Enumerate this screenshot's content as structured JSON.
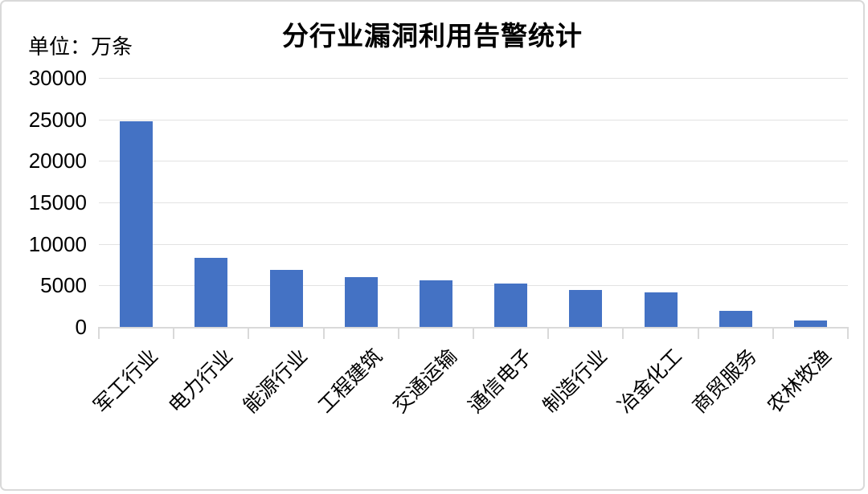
{
  "title": "分行业漏洞利用告警统计",
  "unit_label": "单位：万条",
  "chart_data": {
    "type": "bar",
    "title": "分行业漏洞利用告警统计",
    "unit": "万条",
    "categories": [
      "军工行业",
      "电力行业",
      "能源行业",
      "工程建筑",
      "交通运输",
      "通信电子",
      "制造行业",
      "冶金化工",
      "商贸服务",
      "农林牧渔"
    ],
    "values": [
      24800,
      8300,
      6900,
      6000,
      5650,
      5200,
      4500,
      4200,
      1900,
      800
    ],
    "xlabel": "",
    "ylabel": "万条",
    "ylim": [
      0,
      30000
    ],
    "yticks": [
      0,
      5000,
      10000,
      15000,
      20000,
      25000,
      30000
    ],
    "grid": "horizontal",
    "legend_position": "none",
    "bar_color": "#4472C4",
    "gridline_color": "#e2e2e2",
    "axis_color": "#d9d9d9",
    "text_color": "#000000"
  }
}
